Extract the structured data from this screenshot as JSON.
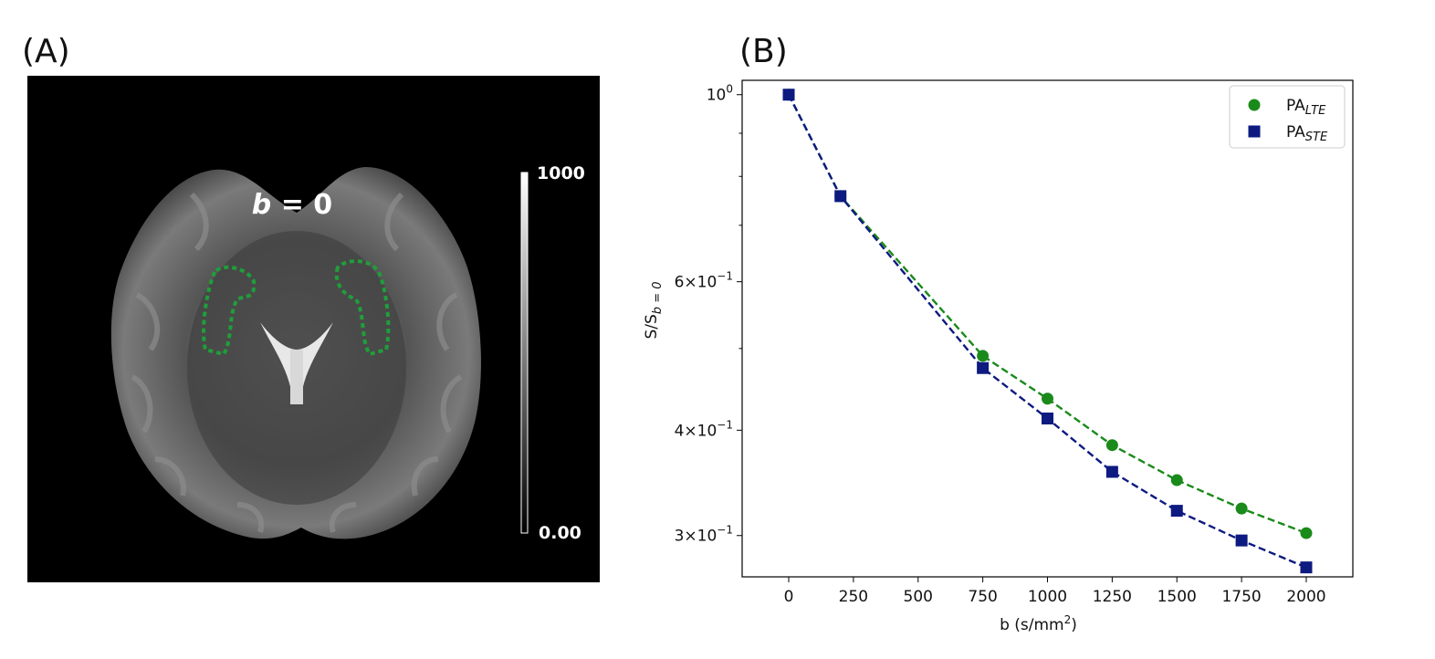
{
  "panels": {
    "a_label": "(A)",
    "b_label": "(B)"
  },
  "image_panel": {
    "title_italic": "b",
    "title_rest": " = 0",
    "colorbar_max": "1000",
    "colorbar_min": "0.00",
    "roi_color": "#1f9e3a"
  },
  "chart_data": {
    "type": "line",
    "title": "",
    "xlabel": "b (s/mm",
    "xlabel_sup": "2",
    "xlabel_close": ")",
    "ylabel": "S/S",
    "ylabel_sub": "b = 0",
    "yscale": "log",
    "xlim": [
      -180,
      2180
    ],
    "ylim": [
      0.268,
      1.04
    ],
    "x_ticks": [
      0,
      250,
      500,
      750,
      1000,
      1250,
      1500,
      1750,
      2000
    ],
    "x_tick_labels": [
      "0",
      "250",
      "500",
      "750",
      "1000",
      "1250",
      "1500",
      "1750",
      "2000"
    ],
    "y_ticks": [
      {
        "value": 1.0,
        "base": "10",
        "exp": "0"
      },
      {
        "value": 0.6,
        "base": "6×10",
        "exp": "−1"
      },
      {
        "value": 0.4,
        "base": "4×10",
        "exp": "−1"
      },
      {
        "value": 0.3,
        "base": "3×10",
        "exp": "−1"
      }
    ],
    "y_minor_ticks": [
      0.5,
      0.7,
      0.8,
      0.9
    ],
    "legend_position": "top-right",
    "series": [
      {
        "name": "PA",
        "name_sub": "LTE",
        "color": "#1a8a1a",
        "marker": "circle",
        "x": [
          0,
          200,
          750,
          1000,
          1250,
          1500,
          1750,
          2000
        ],
        "y": [
          1.0,
          0.758,
          0.49,
          0.436,
          0.384,
          0.349,
          0.323,
          0.302
        ]
      },
      {
        "name": "PA",
        "name_sub": "STE",
        "color": "#0d1a80",
        "marker": "square",
        "x": [
          0,
          200,
          750,
          1000,
          1250,
          1500,
          1750,
          2000
        ],
        "y": [
          1.0,
          0.758,
          0.474,
          0.413,
          0.357,
          0.321,
          0.296,
          0.275
        ]
      }
    ]
  }
}
